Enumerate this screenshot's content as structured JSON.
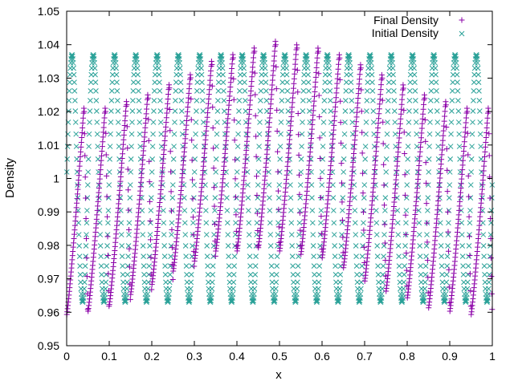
{
  "chart_data": {
    "type": "scatter",
    "title": "",
    "xlabel": "x",
    "ylabel": "Density",
    "xlim": [
      0,
      1
    ],
    "ylim": [
      0.95,
      1.05
    ],
    "grid": false,
    "legend_position": "top-right",
    "x_ticks": [
      0,
      0.1,
      0.2,
      0.3,
      0.4,
      0.5,
      0.6,
      0.7,
      0.8,
      0.9,
      1
    ],
    "x_tick_labels": [
      "0",
      "0.1",
      "0.2",
      "0.3",
      "0.4",
      "0.5",
      "0.6",
      "0.7",
      "0.8",
      "0.9",
      "1"
    ],
    "y_ticks": [
      0.95,
      0.96,
      0.97,
      0.98,
      0.99,
      1,
      1.01,
      1.02,
      1.03,
      1.04,
      1.05
    ],
    "y_tick_labels": [
      "0.95",
      "0.96",
      "0.97",
      "0.98",
      "0.99",
      "1",
      "1.01",
      "1.02",
      "1.03",
      "1.04",
      "1.05"
    ],
    "series": [
      {
        "name": "Final Density",
        "marker": "+",
        "color": "#8b00a8",
        "pattern": {
          "n_cycles": 20,
          "points_per_cycle": 60,
          "top_envelope": [
            1.022,
            1.022,
            1.024,
            1.026,
            1.029,
            1.032,
            1.036,
            1.038,
            1.04,
            1.042,
            1.041,
            1.04,
            1.038,
            1.035,
            1.032,
            1.029,
            1.026,
            1.024,
            1.022,
            1.022
          ],
          "bottom_envelope": [
            0.959,
            0.96,
            0.962,
            0.965,
            0.968,
            0.972,
            0.975,
            0.978,
            0.978,
            0.979,
            0.978,
            0.977,
            0.976,
            0.973,
            0.969,
            0.966,
            0.964,
            0.961,
            0.96,
            0.959
          ]
        }
      },
      {
        "name": "Initial Density",
        "marker": "x",
        "color": "#2aa198",
        "pattern": {
          "n_cycles": 20,
          "points_per_cycle": 60,
          "max": 1.037,
          "min": 0.963
        }
      }
    ]
  },
  "legend": {
    "entries": [
      "Final Density",
      "Initial Density"
    ]
  }
}
